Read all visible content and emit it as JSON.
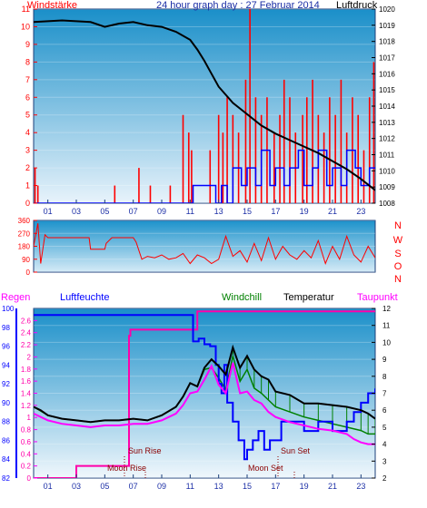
{
  "chart_data": [
    {
      "type": "line",
      "title": "24 hour graph day : 27 Februar 2014",
      "left_label": "Windstärke",
      "right_label": "Luftdruck",
      "x_ticks": [
        "01",
        "03",
        "05",
        "07",
        "09",
        "11",
        "13",
        "15",
        "17",
        "19",
        "21",
        "23"
      ],
      "ylim_left": [
        0,
        11
      ],
      "y_ticks_left": [
        0,
        1,
        2,
        3,
        4,
        5,
        6,
        7,
        8,
        9,
        10,
        11
      ],
      "ylim_right": [
        1008,
        1020
      ],
      "y_ticks_right": [
        1008,
        1009,
        1010,
        1011,
        1012,
        1013,
        1014,
        1015,
        1016,
        1017,
        1018,
        1019,
        1020
      ],
      "series": [
        {
          "color": "#000000",
          "axis": "right",
          "x": [
            0,
            2,
            4,
            5,
            6,
            7,
            8,
            9,
            10,
            11,
            11.5,
            12,
            12.5,
            13,
            14,
            15,
            16,
            17,
            18,
            19,
            20,
            21,
            22,
            23,
            24
          ],
          "values": [
            1019.2,
            1019.3,
            1019.2,
            1018.9,
            1019.1,
            1019.2,
            1019.0,
            1018.9,
            1018.6,
            1018.1,
            1017.5,
            1016.8,
            1016.0,
            1015.2,
            1014.2,
            1013.5,
            1012.8,
            1012.3,
            1011.9,
            1011.5,
            1011.1,
            1010.6,
            1010.1,
            1009.5,
            1008.8
          ]
        },
        {
          "color": "#ff0000",
          "axis": "left",
          "style": "gust-spikes",
          "x": [
            0.1,
            0.3,
            5.7,
            7.4,
            8.2,
            9.6,
            10.5,
            10.9,
            11.1,
            12.4,
            13,
            13.3,
            13.6,
            14,
            14.4,
            14.9,
            15.2,
            15.6,
            16,
            16.4,
            16.9,
            17.3,
            17.6,
            18,
            18.4,
            18.9,
            19.2,
            19.6,
            20,
            20.4,
            20.8,
            21.2,
            21.6,
            22,
            22.4,
            22.8,
            23.2,
            23.6,
            23.9
          ],
          "values": [
            2,
            1,
            1,
            2,
            1,
            1,
            5,
            4,
            3,
            3,
            5,
            4,
            6,
            5,
            4,
            7,
            11,
            6,
            5,
            6,
            4,
            5,
            7,
            6,
            4,
            5,
            6,
            7,
            5,
            4,
            6,
            5,
            7,
            4,
            6,
            5,
            3,
            6,
            8
          ]
        },
        {
          "color": "#0000ff",
          "axis": "left",
          "style": "mean-steps",
          "x": [
            0,
            11,
            11.2,
            12.8,
            13.2,
            13.6,
            14,
            14.6,
            15,
            15.6,
            16,
            16.6,
            17,
            17.6,
            18,
            18.6,
            19,
            19.6,
            20,
            20.6,
            21,
            21.6,
            22,
            22.6,
            23,
            23.6,
            24
          ],
          "values": [
            0,
            0,
            1,
            0,
            1,
            0,
            2,
            1,
            2,
            1,
            3,
            1,
            2,
            1,
            2,
            3,
            1,
            2,
            3,
            1,
            2,
            1,
            3,
            2,
            1,
            2,
            2
          ]
        }
      ]
    },
    {
      "type": "line",
      "right_labels": [
        "N",
        "W",
        "S",
        "O",
        "N"
      ],
      "ylim": [
        0,
        360
      ],
      "y_ticks": [
        0,
        90,
        180,
        270,
        360
      ],
      "series": [
        {
          "color": "#ff0000",
          "x": [
            0,
            0.3,
            0.5,
            0.8,
            1,
            3,
            3.9,
            4,
            5,
            5.1,
            5.5,
            6,
            7,
            7.2,
            7.6,
            8,
            8.5,
            9,
            9.5,
            10,
            10.5,
            11,
            11.5,
            12,
            12.5,
            13,
            13.5,
            14,
            14.5,
            15,
            15.5,
            16,
            16.5,
            17,
            17.5,
            18,
            18.5,
            19,
            19.5,
            20,
            20.5,
            21,
            21.5,
            22,
            22.5,
            23,
            23.5,
            24
          ],
          "values": [
            180,
            340,
            60,
            260,
            240,
            240,
            240,
            160,
            160,
            200,
            240,
            240,
            240,
            210,
            90,
            110,
            100,
            120,
            90,
            100,
            130,
            60,
            120,
            100,
            60,
            90,
            250,
            110,
            150,
            70,
            200,
            80,
            240,
            90,
            180,
            120,
            90,
            150,
            100,
            220,
            60,
            180,
            90,
            250,
            120,
            70,
            180,
            100
          ]
        }
      ]
    },
    {
      "type": "line",
      "header_labels": [
        "Regen",
        "Luftfeuchte",
        "Windchill",
        "Temperatur",
        "Taupunkt"
      ],
      "ylim_humidity": [
        82,
        100
      ],
      "y_ticks_humidity": [
        82,
        84,
        86,
        88,
        90,
        92,
        94,
        96,
        98,
        100
      ],
      "ylim_rain": [
        0,
        2.8
      ],
      "y_ticks_rain": [
        0,
        0.2,
        0.4,
        0.6,
        0.8,
        1,
        1.2,
        1.4,
        1.6,
        1.8,
        2,
        2.2,
        2.4,
        2.6
      ],
      "ylim_temperature": [
        2,
        12
      ],
      "y_ticks_temperature": [
        2,
        3,
        4,
        5,
        6,
        7,
        8,
        9,
        10,
        11,
        12
      ],
      "annotations": [
        "Sun Rise",
        "Moon Rise",
        "Moon Set",
        "Sun Set"
      ],
      "series": [
        {
          "name": "Luftfeuchte",
          "color": "#0000ff",
          "axis": "humidity",
          "x": [
            0,
            11,
            11.2,
            11.6,
            12,
            12.4,
            12.8,
            13,
            13.2,
            13.4,
            13.6,
            14,
            14.4,
            14.8,
            15,
            15.4,
            15.8,
            16.2,
            16.6,
            17,
            17.4,
            18,
            19,
            20,
            21,
            22,
            22.5,
            23,
            23.5,
            24
          ],
          "values": [
            99.3,
            99.3,
            96.5,
            96.8,
            96.2,
            96,
            94,
            92,
            91,
            94,
            90,
            88,
            86,
            84,
            85,
            86,
            87,
            85,
            86,
            86,
            88,
            88,
            87,
            88,
            87,
            88,
            89,
            90,
            91,
            91.5
          ]
        },
        {
          "name": "Regen",
          "color": "#ff00aa",
          "axis": "rain",
          "x": [
            0,
            2.9,
            3,
            5,
            6.7,
            6.8,
            11,
            11.5,
            24
          ],
          "values": [
            0,
            0,
            0.2,
            0.2,
            2.35,
            2.45,
            2.45,
            2.75,
            2.75
          ]
        },
        {
          "name": "Temperatur",
          "color": "#000000",
          "axis": "temperature",
          "x": [
            0,
            0.5,
            1,
            2,
            3,
            4,
            5,
            6,
            7,
            8,
            9,
            10,
            10.5,
            11,
            11.5,
            12,
            12.5,
            13,
            13.5,
            14,
            14.5,
            15,
            15.5,
            16,
            16.5,
            17,
            18,
            19,
            20,
            21,
            22,
            23,
            23.5,
            24
          ],
          "values": [
            6.2,
            6.0,
            5.7,
            5.5,
            5.4,
            5.3,
            5.4,
            5.4,
            5.5,
            5.4,
            5.7,
            6.2,
            6.8,
            7.6,
            7.4,
            8.5,
            9,
            8.6,
            8.1,
            9.7,
            8.5,
            9.2,
            8.4,
            8.0,
            7.8,
            7.1,
            6.9,
            6.4,
            6.4,
            6.3,
            6.2,
            6.0,
            5.8,
            5.5
          ]
        },
        {
          "name": "Windchill",
          "color": "#008000",
          "axis": "temperature",
          "x": [
            0,
            1,
            2,
            3,
            4,
            5,
            6,
            7,
            8,
            9,
            10,
            10.5,
            11,
            11.5,
            12,
            12.5,
            13,
            13.5,
            14,
            14.5,
            15,
            15.5,
            16,
            16.5,
            17,
            18,
            19,
            20,
            21,
            22,
            23,
            23.5,
            24
          ],
          "values": [
            6.2,
            5.7,
            5.5,
            5.4,
            5.3,
            5.4,
            5.4,
            5.5,
            5.4,
            5.7,
            6.2,
            6.8,
            7.6,
            7.4,
            8.4,
            8.5,
            7.9,
            7.2,
            9.2,
            7.7,
            8.4,
            7.3,
            7.0,
            6.6,
            6.2,
            5.9,
            5.6,
            5.4,
            5.2,
            5.0,
            4.8,
            4.6,
            4.6
          ]
        },
        {
          "name": "Taupunkt",
          "color": "#ff00ff",
          "axis": "temperature",
          "x": [
            0,
            1,
            2,
            3,
            4,
            5,
            6,
            7,
            8,
            9,
            10,
            10.5,
            11,
            11.5,
            12,
            12.5,
            13,
            13.5,
            14,
            14.5,
            15,
            15.5,
            16,
            16.5,
            17,
            18,
            19,
            20,
            21,
            22,
            22.5,
            23,
            23.5,
            24
          ],
          "values": [
            5.8,
            5.4,
            5.2,
            5.1,
            5.0,
            5.1,
            5.1,
            5.2,
            5.2,
            5.4,
            5.8,
            6.3,
            7.0,
            7.1,
            7.8,
            8.6,
            7.5,
            7.0,
            8.8,
            7.0,
            7.1,
            6.6,
            6.4,
            5.9,
            5.6,
            5.3,
            5.1,
            4.9,
            4.8,
            4.6,
            4.3,
            4.1,
            4.0,
            4.0
          ]
        }
      ]
    }
  ]
}
